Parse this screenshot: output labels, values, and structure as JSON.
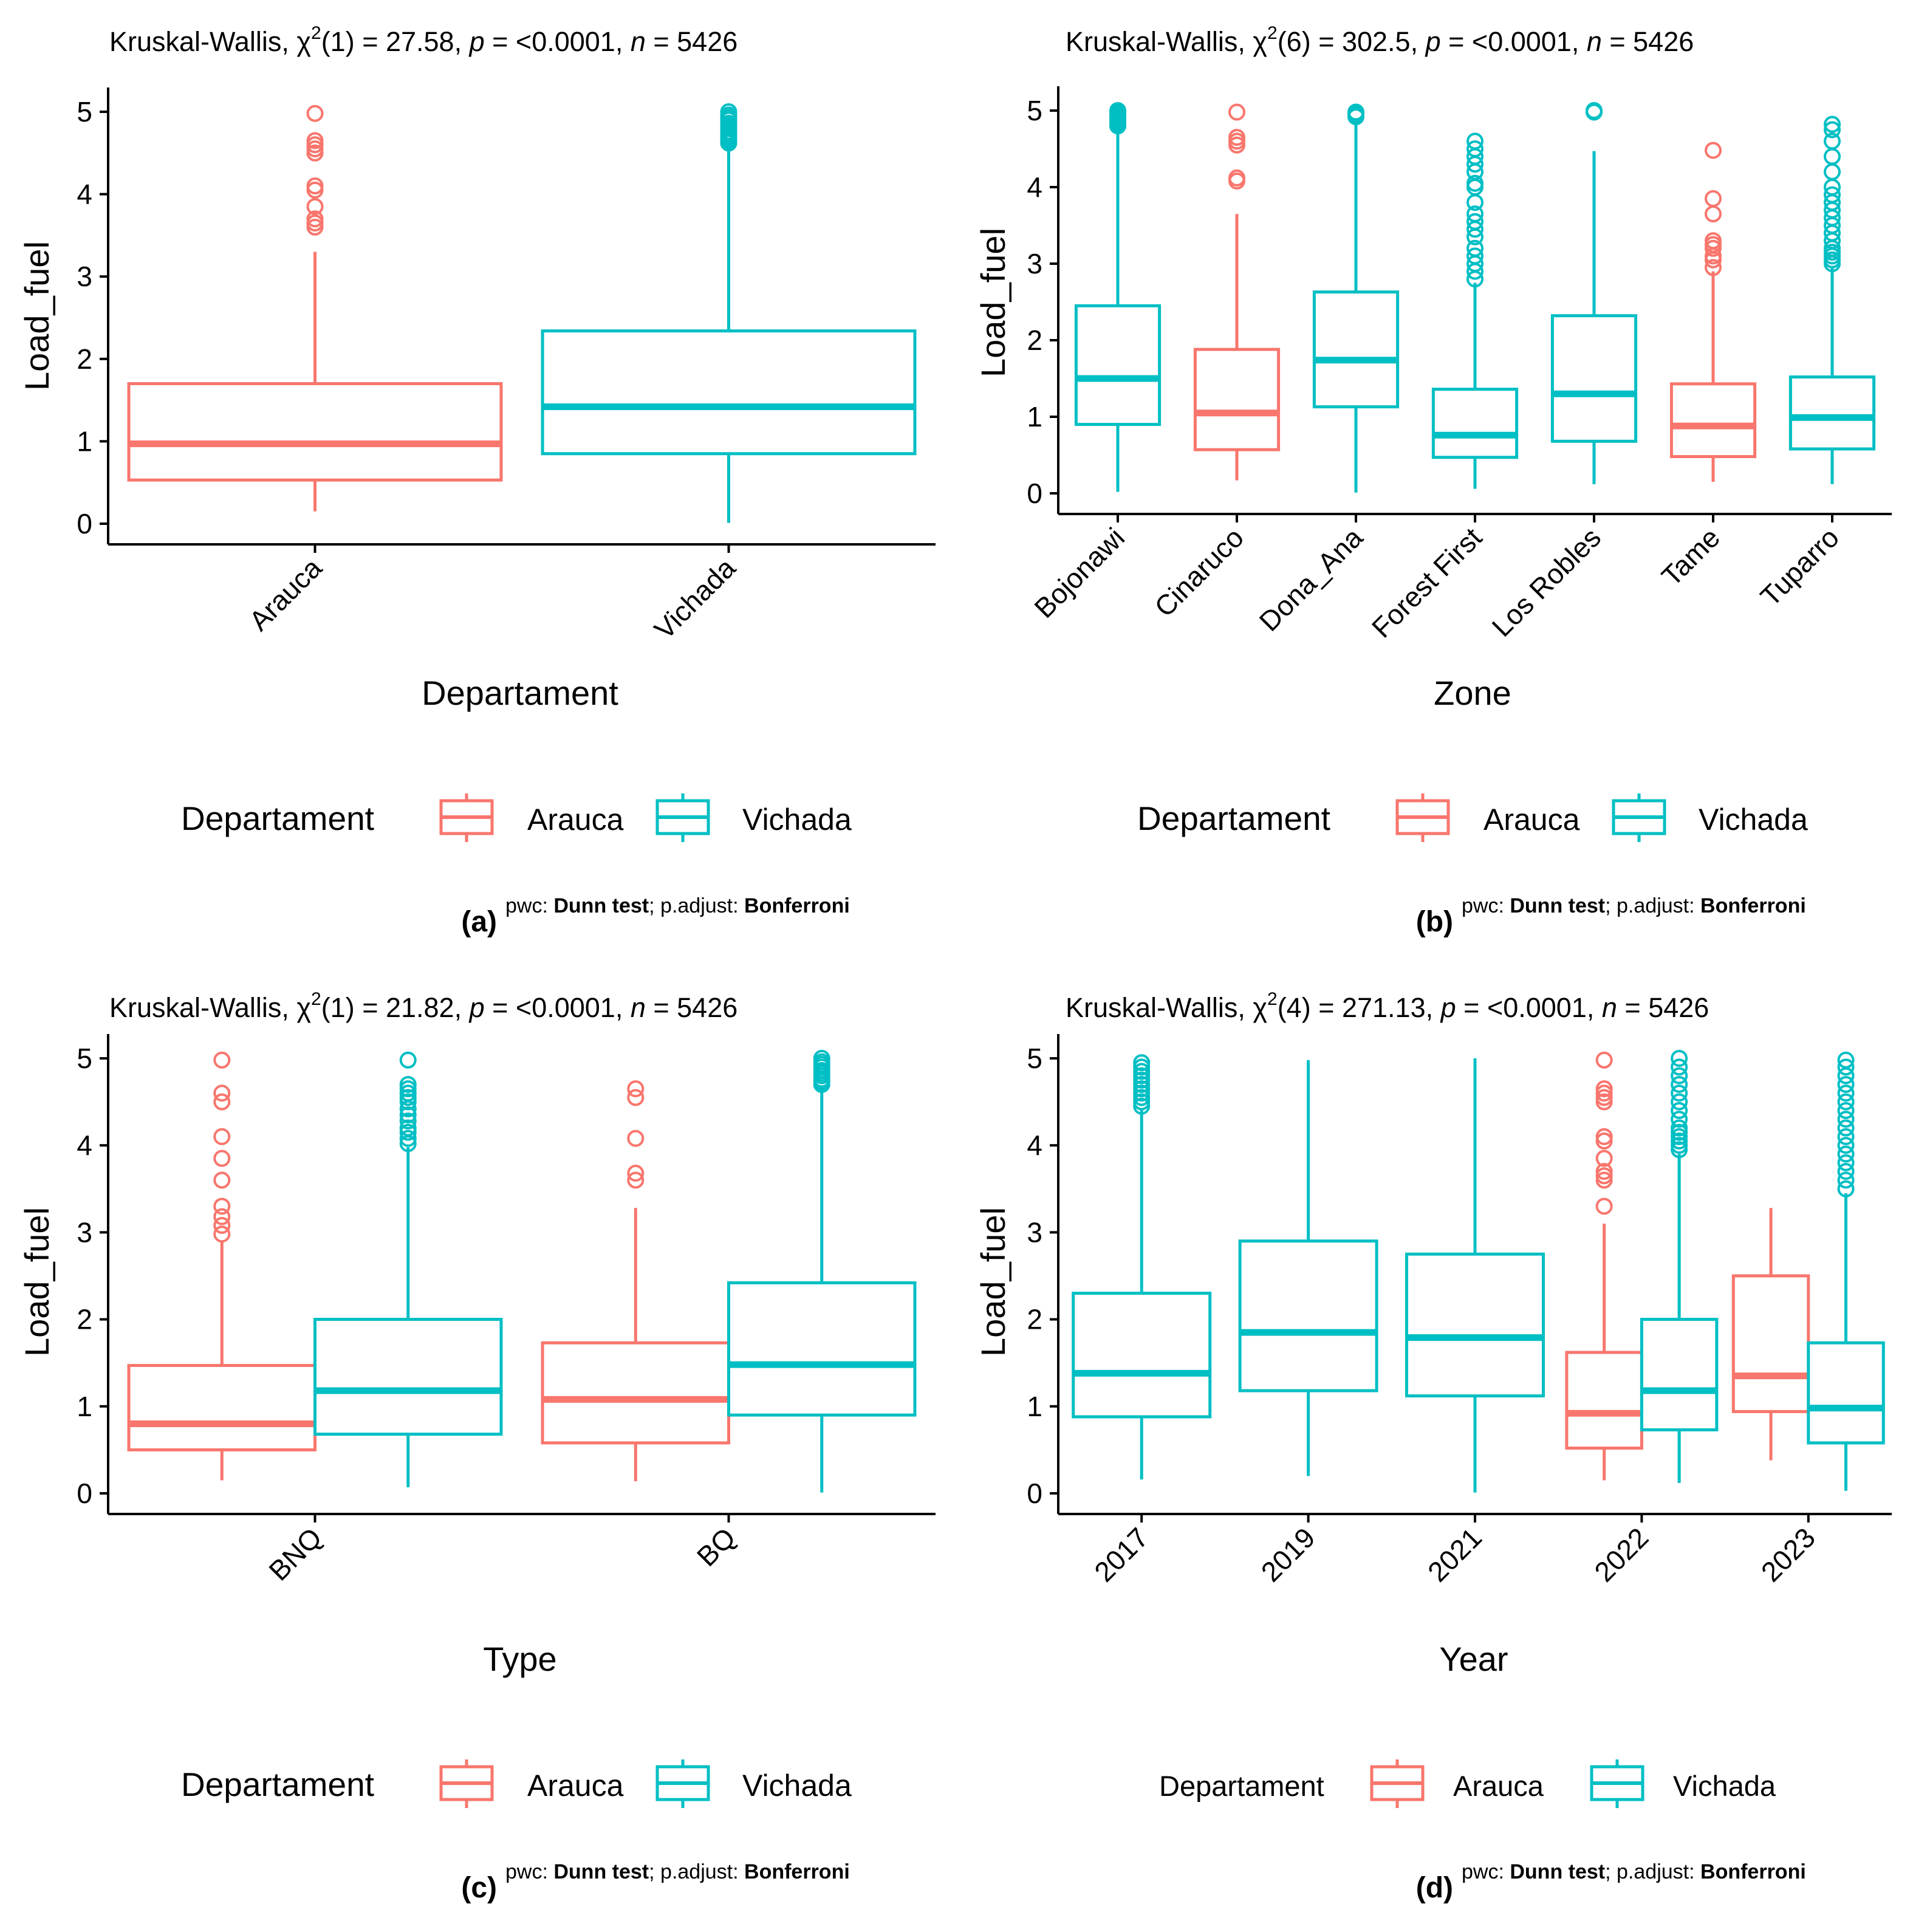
{
  "colors": {
    "arauca": "#F8766D",
    "vichada": "#00BFC4"
  },
  "panels": [
    {
      "id": "a",
      "label": "(a)",
      "title": {
        "prefix": "Kruskal-Wallis, χ",
        "sup": "2",
        "df": "(1)",
        "stat": " = 27.58, ",
        "p": "p",
        "pval": " = <0.0001, ",
        "n": "n",
        "nval": " = 5426"
      },
      "footnote": {
        "pre": "pwc: ",
        "test": "Dunn test",
        "mid": "; p.adjust: ",
        "adj": "Bonferroni"
      },
      "legend": {
        "title": "Departament",
        "entries": [
          "Arauca",
          "Vichada"
        ]
      }
    },
    {
      "id": "b",
      "label": "(b)",
      "title": {
        "prefix": "Kruskal-Wallis, χ",
        "sup": "2",
        "df": "(6)",
        "stat": " = 302.5, ",
        "p": "p",
        "pval": " = <0.0001, ",
        "n": "n",
        "nval": " = 5426"
      },
      "footnote": {
        "pre": "pwc: ",
        "test": "Dunn test",
        "mid": "; p.adjust: ",
        "adj": "Bonferroni"
      },
      "legend": {
        "title": "Departament",
        "entries": [
          "Arauca",
          "Vichada"
        ]
      }
    },
    {
      "id": "c",
      "label": "(c)",
      "title": {
        "prefix": "Kruskal-Wallis, χ",
        "sup": "2",
        "df": "(1)",
        "stat": " = 21.82, ",
        "p": "p",
        "pval": " = <0.0001, ",
        "n": "n",
        "nval": " = 5426"
      },
      "footnote": {
        "pre": "pwc: ",
        "test": "Dunn test",
        "mid": "; p.adjust: ",
        "adj": "Bonferroni"
      },
      "legend": {
        "title": "Departament",
        "entries": [
          "Arauca",
          "Vichada"
        ]
      }
    },
    {
      "id": "d",
      "label": "(d)",
      "title": {
        "prefix": "Kruskal-Wallis, χ",
        "sup": "2",
        "df": "(4)",
        "stat": " = 271.13, ",
        "p": "p",
        "pval": " = <0.0001, ",
        "n": "n",
        "nval": " = 5426"
      },
      "footnote": {
        "pre": "pwc: ",
        "test": "Dunn test",
        "mid": "; p.adjust: ",
        "adj": "Bonferroni"
      },
      "legend": {
        "title": "Departament",
        "entries": [
          "Arauca",
          "Vichada"
        ]
      }
    }
  ],
  "chart_data": [
    {
      "panel": "a",
      "type": "boxplot",
      "xlabel": "Departament",
      "ylabel": "Load_fuel",
      "ylim": [
        0,
        5
      ],
      "yticks": [
        0,
        1,
        2,
        3,
        4,
        5
      ],
      "categories": [
        "Arauca",
        "Vichada"
      ],
      "boxes": [
        {
          "category": "Arauca",
          "group": "Arauca",
          "min": 0.15,
          "q1": 0.53,
          "median": 0.97,
          "q3": 1.7,
          "max": 3.3,
          "outliers": [
            3.6,
            3.65,
            3.7,
            3.85,
            4.05,
            4.1,
            4.5,
            4.55,
            4.6,
            4.65,
            4.98
          ]
        },
        {
          "category": "Vichada",
          "group": "Vichada",
          "min": 0.01,
          "q1": 0.85,
          "median": 1.42,
          "q3": 2.34,
          "max": 4.6,
          "outliers": [
            4.62,
            4.65,
            4.68,
            4.7,
            4.73,
            4.76,
            4.8,
            4.83,
            4.86,
            4.9,
            4.93,
            4.96,
            5.0
          ]
        }
      ]
    },
    {
      "panel": "b",
      "type": "boxplot",
      "xlabel": "Zone",
      "ylabel": "Load_fuel",
      "ylim": [
        0,
        5
      ],
      "yticks": [
        0,
        1,
        2,
        3,
        4,
        5
      ],
      "categories": [
        "Bojonawi",
        "Cinaruco",
        "Dona_Ana",
        "Forest First",
        "Los Robles",
        "Tame",
        "Tuparro"
      ],
      "boxes": [
        {
          "category": "Bojonawi",
          "group": "Vichada",
          "min": 0.02,
          "q1": 0.9,
          "median": 1.5,
          "q3": 2.45,
          "max": 4.78,
          "outliers": [
            4.8,
            4.83,
            4.86,
            4.89,
            4.92,
            4.95,
            4.98,
            5.0
          ]
        },
        {
          "category": "Cinaruco",
          "group": "Arauca",
          "min": 0.17,
          "q1": 0.57,
          "median": 1.05,
          "q3": 1.88,
          "max": 3.65,
          "outliers": [
            4.08,
            4.12,
            4.55,
            4.6,
            4.65,
            4.98
          ]
        },
        {
          "category": "Dona_Ana",
          "group": "Vichada",
          "min": 0.01,
          "q1": 1.13,
          "median": 1.74,
          "q3": 2.63,
          "max": 4.9,
          "outliers": [
            4.92,
            4.95,
            4.98
          ]
        },
        {
          "category": "Forest First",
          "group": "Vichada",
          "min": 0.06,
          "q1": 0.47,
          "median": 0.76,
          "q3": 1.36,
          "max": 2.75,
          "outliers": [
            2.8,
            2.9,
            3.0,
            3.1,
            3.2,
            3.35,
            3.45,
            3.55,
            3.65,
            3.8,
            4.0,
            4.05,
            4.2,
            4.3,
            4.4,
            4.5,
            4.6
          ]
        },
        {
          "category": "Los Robles",
          "group": "Vichada",
          "min": 0.12,
          "q1": 0.68,
          "median": 1.3,
          "q3": 2.32,
          "max": 4.47,
          "outliers": [
            4.98,
            5.0
          ]
        },
        {
          "category": "Tame",
          "group": "Arauca",
          "min": 0.15,
          "q1": 0.48,
          "median": 0.88,
          "q3": 1.43,
          "max": 2.9,
          "outliers": [
            2.95,
            3.05,
            3.1,
            3.2,
            3.25,
            3.3,
            3.65,
            3.85,
            4.48
          ]
        },
        {
          "category": "Tuparro",
          "group": "Vichada",
          "min": 0.12,
          "q1": 0.58,
          "median": 0.99,
          "q3": 1.52,
          "max": 2.95,
          "outliers": [
            3.0,
            3.05,
            3.1,
            3.15,
            3.2,
            3.3,
            3.4,
            3.5,
            3.6,
            3.7,
            3.8,
            3.9,
            4.0,
            4.2,
            4.4,
            4.6,
            4.75,
            4.82
          ]
        }
      ]
    },
    {
      "panel": "c",
      "type": "boxplot",
      "xlabel": "Type",
      "ylabel": "Load_fuel",
      "ylim": [
        0,
        5
      ],
      "yticks": [
        0,
        1,
        2,
        3,
        4,
        5
      ],
      "categories": [
        "BNQ",
        "BQ"
      ],
      "boxes": [
        {
          "category": "BNQ",
          "group": "Arauca",
          "min": 0.15,
          "q1": 0.5,
          "median": 0.8,
          "q3": 1.47,
          "max": 2.9,
          "outliers": [
            2.98,
            3.08,
            3.18,
            3.3,
            3.6,
            3.85,
            4.1,
            4.5,
            4.6,
            4.98
          ]
        },
        {
          "category": "BNQ",
          "group": "Vichada",
          "min": 0.07,
          "q1": 0.68,
          "median": 1.18,
          "q3": 2.0,
          "max": 3.98,
          "outliers": [
            4.02,
            4.08,
            4.15,
            4.2,
            4.28,
            4.35,
            4.42,
            4.5,
            4.55,
            4.6,
            4.65,
            4.7,
            4.98
          ]
        },
        {
          "category": "BQ",
          "group": "Arauca",
          "min": 0.14,
          "q1": 0.58,
          "median": 1.08,
          "q3": 1.73,
          "max": 3.28,
          "outliers": [
            3.6,
            3.68,
            4.08,
            4.55,
            4.65
          ]
        },
        {
          "category": "BQ",
          "group": "Vichada",
          "min": 0.01,
          "q1": 0.9,
          "median": 1.48,
          "q3": 2.42,
          "max": 4.68,
          "outliers": [
            4.7,
            4.73,
            4.76,
            4.8,
            4.83,
            4.86,
            4.9,
            4.93,
            4.96,
            5.0
          ]
        }
      ]
    },
    {
      "panel": "d",
      "type": "boxplot",
      "xlabel": "Year",
      "ylabel": "Load_fuel",
      "ylim": [
        0,
        5
      ],
      "yticks": [
        0,
        1,
        2,
        3,
        4,
        5
      ],
      "categories": [
        "2017",
        "2019",
        "2021",
        "2022",
        "2023"
      ],
      "boxes": [
        {
          "category": "2017",
          "group": "Vichada",
          "min": 0.16,
          "q1": 0.88,
          "median": 1.38,
          "q3": 2.3,
          "max": 4.42,
          "outliers": [
            4.45,
            4.5,
            4.55,
            4.6,
            4.65,
            4.7,
            4.75,
            4.8,
            4.85,
            4.9,
            4.95
          ]
        },
        {
          "category": "2019",
          "group": "Vichada",
          "min": 0.2,
          "q1": 1.18,
          "median": 1.85,
          "q3": 2.9,
          "max": 4.98,
          "outliers": []
        },
        {
          "category": "2021",
          "group": "Vichada",
          "min": 0.01,
          "q1": 1.12,
          "median": 1.79,
          "q3": 2.75,
          "max": 5.0,
          "outliers": []
        },
        {
          "category": "2022",
          "group": "Arauca",
          "min": 0.15,
          "q1": 0.52,
          "median": 0.92,
          "q3": 1.62,
          "max": 3.1,
          "outliers": [
            3.3,
            3.6,
            3.65,
            3.7,
            3.85,
            4.05,
            4.1,
            4.5,
            4.55,
            4.6,
            4.65,
            4.98
          ]
        },
        {
          "category": "2022",
          "group": "Vichada",
          "min": 0.12,
          "q1": 0.73,
          "median": 1.18,
          "q3": 2.0,
          "max": 3.9,
          "outliers": [
            3.95,
            4.0,
            4.05,
            4.1,
            4.15,
            4.2,
            4.3,
            4.4,
            4.5,
            4.6,
            4.7,
            4.8,
            4.9,
            5.0
          ]
        },
        {
          "category": "2023",
          "group": "Arauca",
          "min": 0.38,
          "q1": 0.94,
          "median": 1.35,
          "q3": 2.5,
          "max": 3.28,
          "outliers": []
        },
        {
          "category": "2023",
          "group": "Vichada",
          "min": 0.03,
          "q1": 0.58,
          "median": 0.98,
          "q3": 1.73,
          "max": 3.45,
          "outliers": [
            3.5,
            3.6,
            3.7,
            3.8,
            3.9,
            4.0,
            4.1,
            4.2,
            4.3,
            4.4,
            4.5,
            4.6,
            4.7,
            4.8,
            4.9,
            4.98
          ]
        }
      ]
    }
  ]
}
